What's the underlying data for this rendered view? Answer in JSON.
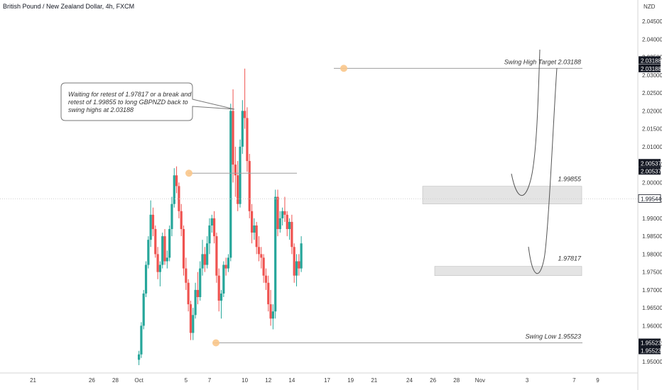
{
  "header": {
    "title": "British Pound / New Zealand Dollar, 4h, FXCM",
    "currency": "NZD"
  },
  "colors": {
    "up": "#26a69a",
    "down": "#ef5350",
    "zone": "#e4e4e4",
    "marker": "#f9c78b",
    "axis_label_bg": "#131722"
  },
  "annotation": {
    "lines": [
      "Waiting for retest of 1.97817 or a break and",
      "retest of 1.99855 to long GBPNZD back to",
      "swing highs at 2.03188"
    ]
  },
  "levels": {
    "swing_high": "Swing High Target 2.03188",
    "resistance": "1.99855",
    "support": "1.97817",
    "swing_low": "Swing Low 1.95523"
  },
  "price_labels": {
    "swing_high_a": "2.03188",
    "swing_high_b": "2.03188",
    "mid_a": "2.00537",
    "mid_b": "2.00537",
    "last": "1.99544",
    "swing_low_a": "1.95523",
    "swing_low_b": "1.95523"
  },
  "chart_data": {
    "type": "candlestick",
    "title": "British Pound / New Zealand Dollar, 4h, FXCM",
    "y_unit": "NZD",
    "ylim": [
      1.948,
      2.047
    ],
    "y_ticks": [
      "1.95000",
      "1.95500",
      "1.96000",
      "1.96500",
      "1.97000",
      "1.97500",
      "1.98000",
      "1.98500",
      "1.99000",
      "1.99500",
      "2.00000",
      "2.00500",
      "2.01000",
      "2.01500",
      "2.02000",
      "2.02500",
      "2.03000",
      "2.03500",
      "2.04000",
      "2.04500"
    ],
    "x_ticks": [
      "21",
      "26",
      "28",
      "Oct",
      "5",
      "7",
      "10",
      "12",
      "14",
      "17",
      "19",
      "21",
      "24",
      "26",
      "28",
      "Nov",
      "3",
      "7",
      "9"
    ],
    "x_tick_positions": [
      0,
      5,
      7,
      9,
      13,
      15,
      18,
      20,
      22,
      25,
      27,
      29,
      32,
      34,
      36,
      38,
      42,
      46,
      48
    ],
    "x_range_days": [
      -1,
      49
    ],
    "swing_high": 2.03188,
    "swing_low": 1.95523,
    "resistance_zone": [
      1.996,
      1.99855
    ],
    "support_zone": [
      1.97557,
      1.97817
    ],
    "last_price": 1.99544,
    "ohlc_sample_note": "Approximate 4h candles read from chart",
    "candles": [
      [
        9.0,
        1.9505,
        1.953,
        1.949,
        1.952
      ],
      [
        9.2,
        1.952,
        1.961,
        1.951,
        1.96
      ],
      [
        9.4,
        1.96,
        1.97,
        1.959,
        1.969
      ],
      [
        9.6,
        1.969,
        1.978,
        1.968,
        1.977
      ],
      [
        9.8,
        1.977,
        1.985,
        1.976,
        1.984
      ],
      [
        10.0,
        1.984,
        1.995,
        1.982,
        1.991
      ],
      [
        10.2,
        1.991,
        1.993,
        1.985,
        1.987
      ],
      [
        10.4,
        1.987,
        1.988,
        1.979,
        1.98
      ],
      [
        10.6,
        1.98,
        1.982,
        1.973,
        1.975
      ],
      [
        10.8,
        1.975,
        1.978,
        1.971,
        1.977
      ],
      [
        11.0,
        1.977,
        1.986,
        1.976,
        1.985
      ],
      [
        11.2,
        1.985,
        1.987,
        1.977,
        1.978
      ],
      [
        11.4,
        1.978,
        1.981,
        1.976,
        1.979
      ],
      [
        11.6,
        1.979,
        1.988,
        1.978,
        1.987
      ],
      [
        11.8,
        1.987,
        1.996,
        1.985,
        1.994
      ],
      [
        12.0,
        1.994,
        2.004,
        1.993,
        2.002
      ],
      [
        12.2,
        2.002,
        2.0045,
        1.997,
        1.999
      ],
      [
        12.4,
        1.999,
        2.0,
        1.99,
        1.992
      ],
      [
        12.6,
        1.992,
        1.994,
        1.985,
        1.987
      ],
      [
        12.8,
        1.987,
        1.988,
        1.974,
        1.976
      ],
      [
        13.0,
        1.976,
        1.979,
        1.97,
        1.972
      ],
      [
        13.2,
        1.972,
        1.973,
        1.964,
        1.966
      ],
      [
        13.4,
        1.966,
        1.967,
        1.956,
        1.958
      ],
      [
        13.6,
        1.958,
        1.965,
        1.956,
        1.963
      ],
      [
        13.8,
        1.963,
        1.972,
        1.962,
        1.97
      ],
      [
        14.0,
        1.97,
        1.975,
        1.966,
        1.968
      ],
      [
        14.2,
        1.968,
        1.978,
        1.967,
        1.976
      ],
      [
        14.4,
        1.976,
        1.984,
        1.974,
        1.98
      ],
      [
        14.6,
        1.98,
        1.982,
        1.975,
        1.977
      ],
      [
        14.8,
        1.977,
        1.985,
        1.976,
        1.983
      ],
      [
        15.0,
        1.983,
        1.99,
        1.98,
        1.988
      ],
      [
        15.2,
        1.988,
        1.991,
        1.986,
        1.99
      ],
      [
        15.4,
        1.99,
        1.992,
        1.983,
        1.985
      ],
      [
        15.6,
        1.985,
        1.986,
        1.972,
        1.974
      ],
      [
        15.8,
        1.974,
        1.976,
        1.964,
        1.967
      ],
      [
        16.0,
        1.967,
        1.97,
        1.962,
        1.969
      ],
      [
        16.2,
        1.969,
        1.978,
        1.968,
        1.977
      ],
      [
        16.4,
        1.977,
        1.979,
        1.974,
        1.976
      ],
      [
        16.6,
        1.976,
        1.98,
        1.975,
        1.979
      ],
      [
        16.8,
        1.979,
        2.022,
        1.978,
        2.02
      ],
      [
        17.0,
        2.02,
        2.026,
        2.0,
        2.005
      ],
      [
        17.2,
        2.005,
        2.01,
        1.996,
        2.002
      ],
      [
        17.4,
        2.002,
        2.006,
        1.992,
        1.994
      ],
      [
        17.6,
        1.994,
        2.012,
        1.993,
        2.01
      ],
      [
        17.8,
        2.01,
        2.023,
        2.008,
        2.02
      ],
      [
        18.0,
        2.02,
        2.0318,
        2.015,
        2.018
      ],
      [
        18.2,
        2.018,
        2.021,
        2.003,
        2.006
      ],
      [
        18.4,
        2.006,
        2.008,
        1.99,
        1.992
      ],
      [
        18.6,
        1.992,
        1.994,
        1.983,
        1.986
      ],
      [
        18.8,
        1.986,
        1.99,
        1.984,
        1.988
      ],
      [
        19.0,
        1.988,
        1.989,
        1.98,
        1.982
      ],
      [
        19.2,
        1.982,
        1.985,
        1.978,
        1.98
      ],
      [
        19.4,
        1.98,
        1.982,
        1.976,
        1.979
      ],
      [
        19.6,
        1.979,
        1.98,
        1.972,
        1.974
      ],
      [
        19.8,
        1.974,
        1.976,
        1.97,
        1.972
      ],
      [
        20.0,
        1.972,
        1.974,
        1.964,
        1.966
      ],
      [
        20.2,
        1.966,
        1.97,
        1.96,
        1.962
      ],
      [
        20.4,
        1.962,
        1.966,
        1.959,
        1.964
      ],
      [
        20.6,
        1.964,
        1.998,
        1.962,
        1.996
      ],
      [
        20.8,
        1.996,
        1.998,
        1.985,
        1.987
      ],
      [
        21.0,
        1.987,
        1.992,
        1.986,
        1.99
      ],
      [
        21.2,
        1.99,
        1.993,
        1.988,
        1.992
      ],
      [
        21.4,
        1.992,
        1.996,
        1.989,
        1.991
      ],
      [
        21.6,
        1.991,
        1.992,
        1.985,
        1.987
      ],
      [
        21.8,
        1.987,
        1.99,
        1.984,
        1.989
      ],
      [
        22.0,
        1.989,
        1.991,
        1.98,
        1.982
      ],
      [
        22.2,
        1.982,
        1.983,
        1.972,
        1.974
      ],
      [
        22.4,
        1.974,
        1.98,
        1.971,
        1.978
      ],
      [
        22.6,
        1.978,
        1.98,
        1.974,
        1.976
      ],
      [
        22.8,
        1.976,
        1.985,
        1.975,
        1.983
      ]
    ]
  }
}
